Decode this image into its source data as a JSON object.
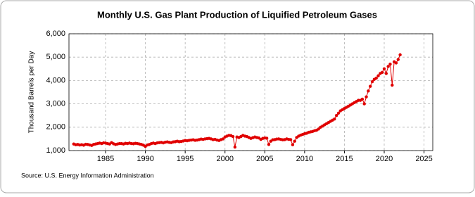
{
  "chart_data": {
    "type": "line",
    "title": "Monthly U.S. Gas Plant Production of Liquified Petroleum Gases",
    "y_label": "Thousand Barrels per Day",
    "source": "Source: U.S. Energy Information Administration",
    "color": "#e00000",
    "grid": true,
    "xlim": [
      1980.4,
      2026.1
    ],
    "xticks": [
      1985,
      1990,
      1995,
      2000,
      2005,
      2010,
      2015,
      2020,
      2025
    ],
    "ylim": [
      1000,
      6000
    ],
    "yticks": [
      {
        "value": 1000,
        "label": "1,000"
      },
      {
        "value": 2000,
        "label": "2,000"
      },
      {
        "value": 3000,
        "label": "3,000"
      },
      {
        "value": 4000,
        "label": "4,000"
      },
      {
        "value": 5000,
        "label": "5,000"
      },
      {
        "value": 6000,
        "label": "6,000"
      }
    ],
    "x": [
      1981,
      1981.25,
      1981.5,
      1981.75,
      1982,
      1982.25,
      1982.5,
      1982.75,
      1983,
      1983.25,
      1983.5,
      1983.75,
      1984,
      1984.25,
      1984.5,
      1984.75,
      1985,
      1985.25,
      1985.5,
      1985.75,
      1986,
      1986.25,
      1986.5,
      1986.75,
      1987,
      1987.25,
      1987.5,
      1987.75,
      1988,
      1988.25,
      1988.5,
      1988.75,
      1989,
      1989.25,
      1989.5,
      1989.75,
      1990,
      1990.25,
      1990.5,
      1990.75,
      1991,
      1991.25,
      1991.5,
      1991.75,
      1992,
      1992.25,
      1992.5,
      1992.75,
      1993,
      1993.25,
      1993.5,
      1993.75,
      1994,
      1994.25,
      1994.5,
      1994.75,
      1995,
      1995.25,
      1995.5,
      1995.75,
      1996,
      1996.25,
      1996.5,
      1996.75,
      1997,
      1997.25,
      1997.5,
      1997.75,
      1998,
      1998.25,
      1998.5,
      1998.75,
      1999,
      1999.25,
      1999.5,
      1999.75,
      2000,
      2000.25,
      2000.5,
      2000.75,
      2001,
      2001.25,
      2001.5,
      2001.75,
      2002,
      2002.25,
      2002.5,
      2002.75,
      2003,
      2003.25,
      2003.5,
      2003.75,
      2004,
      2004.25,
      2004.5,
      2004.75,
      2005,
      2005.25,
      2005.5,
      2005.75,
      2006,
      2006.25,
      2006.5,
      2006.75,
      2007,
      2007.25,
      2007.5,
      2007.75,
      2008,
      2008.25,
      2008.5,
      2008.75,
      2009,
      2009.25,
      2009.5,
      2009.75,
      2010,
      2010.25,
      2010.5,
      2010.75,
      2011,
      2011.25,
      2011.5,
      2011.75,
      2012,
      2012.25,
      2012.5,
      2012.75,
      2013,
      2013.25,
      2013.5,
      2013.75,
      2014,
      2014.25,
      2014.5,
      2014.75,
      2015,
      2015.25,
      2015.5,
      2015.75,
      2016,
      2016.25,
      2016.5,
      2016.75,
      2017,
      2017.25,
      2017.5,
      2017.75,
      2018,
      2018.25,
      2018.5,
      2018.75,
      2019,
      2019.25,
      2019.5,
      2019.75,
      2020,
      2020.25,
      2020.5,
      2020.75,
      2021,
      2021.25,
      2021.5,
      2021.75,
      2022
    ],
    "values": [
      1280,
      1250,
      1260,
      1240,
      1250,
      1230,
      1270,
      1260,
      1240,
      1220,
      1260,
      1280,
      1300,
      1320,
      1300,
      1330,
      1320,
      1300,
      1280,
      1340,
      1290,
      1260,
      1280,
      1300,
      1300,
      1280,
      1310,
      1300,
      1320,
      1300,
      1290,
      1310,
      1300,
      1280,
      1260,
      1230,
      1180,
      1240,
      1260,
      1300,
      1320,
      1300,
      1330,
      1340,
      1350,
      1330,
      1360,
      1370,
      1350,
      1340,
      1370,
      1380,
      1400,
      1380,
      1390,
      1410,
      1430,
      1420,
      1440,
      1450,
      1460,
      1440,
      1450,
      1470,
      1490,
      1480,
      1500,
      1510,
      1520,
      1500,
      1470,
      1480,
      1450,
      1430,
      1470,
      1500,
      1580,
      1620,
      1650,
      1640,
      1600,
      1150,
      1580,
      1560,
      1600,
      1650,
      1620,
      1600,
      1560,
      1520,
      1550,
      1580,
      1560,
      1540,
      1480,
      1520,
      1540,
      1530,
      1260,
      1400,
      1460,
      1470,
      1490,
      1500,
      1480,
      1460,
      1470,
      1500,
      1480,
      1470,
      1250,
      1400,
      1560,
      1620,
      1660,
      1690,
      1720,
      1740,
      1780,
      1800,
      1820,
      1850,
      1870,
      1920,
      2000,
      2050,
      2100,
      2150,
      2200,
      2250,
      2300,
      2350,
      2500,
      2600,
      2700,
      2750,
      2800,
      2850,
      2900,
      2950,
      3000,
      3050,
      3100,
      3150,
      3150,
      3200,
      3000,
      3300,
      3550,
      3750,
      3950,
      4050,
      4100,
      4200,
      4300,
      4350,
      4500,
      4300,
      4600,
      4700,
      3800,
      4800,
      4750,
      4900,
      5100
    ]
  }
}
